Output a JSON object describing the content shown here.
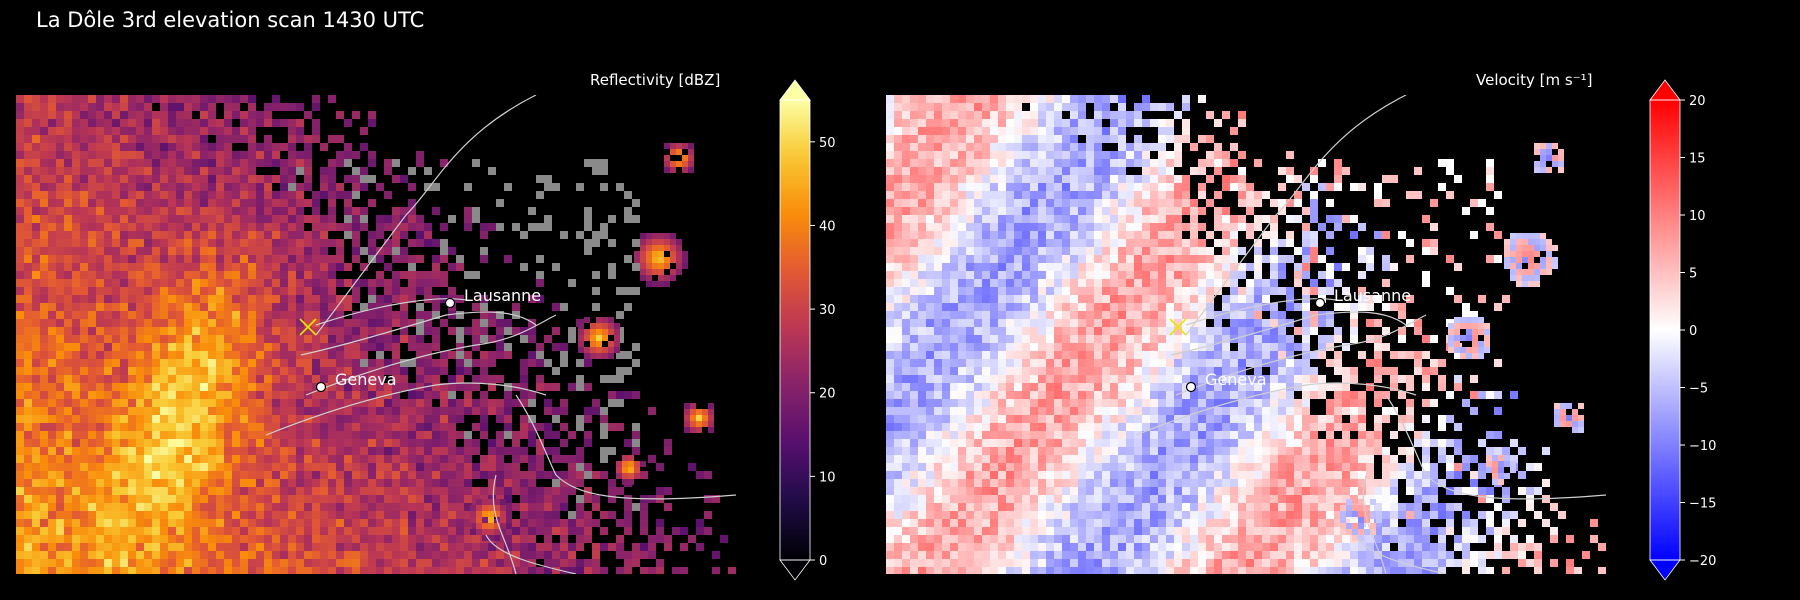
{
  "figure": {
    "title": "La Dôle 3rd elevation scan 1430 UTC"
  },
  "colors": {
    "background": "#000000",
    "borders": "#cfcfcf",
    "radar_marker": "#e8e800",
    "clutter": "#8a8a8a"
  },
  "chart_data": [
    {
      "type": "heatmap",
      "title": "Reflectivity [dBZ]",
      "colormap": "inferno",
      "colorbar": {
        "range": [
          0,
          55
        ],
        "ticks": [
          0,
          10,
          20,
          30,
          40,
          50
        ],
        "tick_labels": [
          "0",
          "10",
          "20",
          "30",
          "40",
          "50"
        ],
        "extend": "both"
      },
      "radar_marker": "x",
      "cities": [
        {
          "name": "Lausanne",
          "marker": "dot"
        },
        {
          "name": "Geneva",
          "marker": "dot"
        }
      ],
      "grid": false
    },
    {
      "type": "heatmap",
      "title": "Velocity [m s⁻¹]",
      "colormap": "bwr",
      "colorbar": {
        "range": [
          -20,
          20
        ],
        "ticks": [
          -20,
          -15,
          -10,
          -5,
          0,
          5,
          10,
          15,
          20
        ],
        "tick_labels": [
          "−20",
          "−15",
          "−10",
          "−5",
          "0",
          "5",
          "10",
          "15",
          "20"
        ],
        "extend": "both"
      },
      "radar_marker": "x",
      "cities": [
        {
          "name": "Lausanne",
          "marker": "dot"
        },
        {
          "name": "Geneva",
          "marker": "dot"
        }
      ],
      "grid": false
    }
  ]
}
